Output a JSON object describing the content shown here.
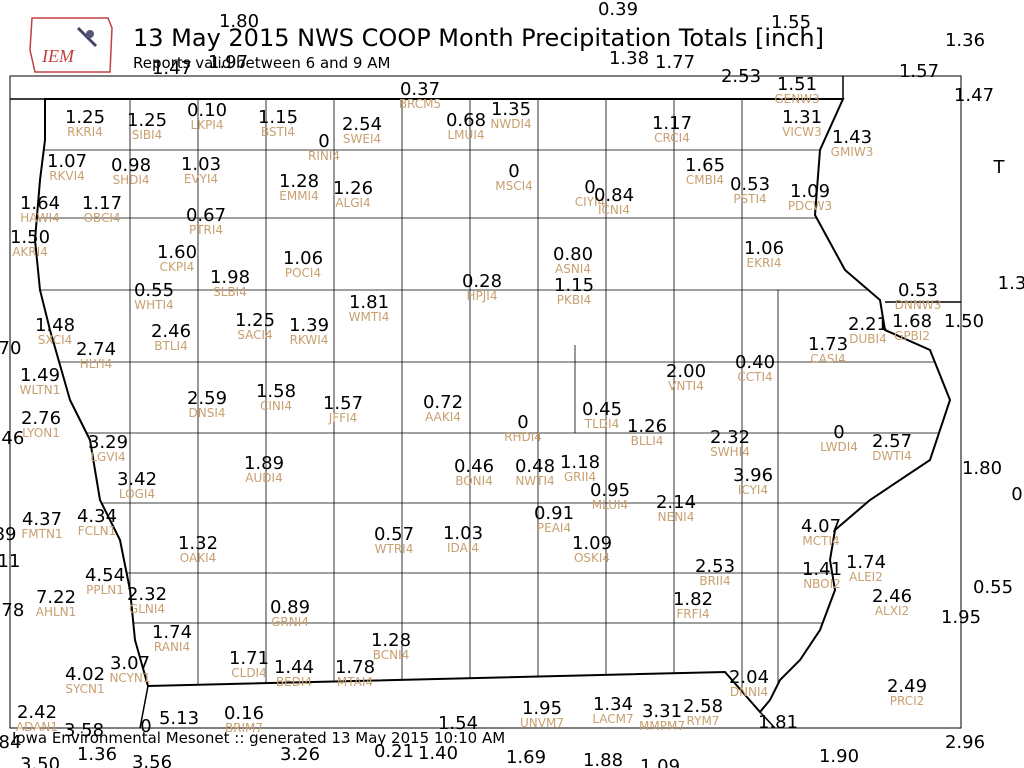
{
  "header": {
    "logo": "IEM",
    "title": "13 May 2015 NWS COOP Month Precipitation Totals [inch]",
    "subtitle": "Reports valid between 6 and 9 AM"
  },
  "stations": [
    {
      "value": "1.25",
      "id": "RKRI4"
    },
    {
      "value": "1.25",
      "id": "SIBI4"
    },
    {
      "value": "0.10",
      "id": "LKPI4"
    },
    {
      "value": "1.15",
      "id": "BSTI4"
    },
    {
      "value": "0",
      "id": "RINI4"
    },
    {
      "value": "2.54",
      "id": "SWEI4"
    },
    {
      "value": "0.37",
      "id": "BRCM5"
    },
    {
      "value": "0.68",
      "id": "LMUI4"
    },
    {
      "value": "1.35",
      "id": "NWDI4"
    },
    {
      "value": "1.17",
      "id": "CRCI4"
    },
    {
      "value": "1.51",
      "id": "GENW3"
    },
    {
      "value": "1.31",
      "id": "VICW3"
    },
    {
      "value": "1.43",
      "id": "GMIW3"
    },
    {
      "value": "1.07",
      "id": "RKVI4"
    },
    {
      "value": "0.98",
      "id": "SHDI4"
    },
    {
      "value": "1.03",
      "id": "EVYI4"
    },
    {
      "value": "1.28",
      "id": "EMMI4"
    },
    {
      "value": "1.26",
      "id": "ALGI4"
    },
    {
      "value": "0",
      "id": "MSCI4"
    },
    {
      "value": "0",
      "id": "CIYI4"
    },
    {
      "value": "0.84",
      "id": "ICNI4"
    },
    {
      "value": "1.65",
      "id": "CMBI4"
    },
    {
      "value": "0.53",
      "id": "PSTI4"
    },
    {
      "value": "1.09",
      "id": "PDCW3"
    },
    {
      "value": "1.64",
      "id": "HAWI4"
    },
    {
      "value": "1.17",
      "id": "OBCI4"
    },
    {
      "value": "0.67",
      "id": "PTRI4"
    },
    {
      "value": "1.50",
      "id": "AKRI4"
    },
    {
      "value": "1.60",
      "id": "CKPI4"
    },
    {
      "value": "1.06",
      "id": "POCI4"
    },
    {
      "value": "0.80",
      "id": "ASNI4"
    },
    {
      "value": "1.06",
      "id": "EKRI4"
    },
    {
      "value": "1.98",
      "id": "SLBI4"
    },
    {
      "value": "0.28",
      "id": "HPJI4"
    },
    {
      "value": "1.15",
      "id": "PKBI4"
    },
    {
      "value": "0.55",
      "id": "WHTI4"
    },
    {
      "value": "1.81",
      "id": "WMTI4"
    },
    {
      "value": "0.53",
      "id": "DNNW3"
    },
    {
      "value": "1.25",
      "id": "SACI4"
    },
    {
      "value": "1.39",
      "id": "RKWI4"
    },
    {
      "value": "2.46",
      "id": "BTLI4"
    },
    {
      "value": "1.48",
      "id": "SXCI4"
    },
    {
      "value": "2.21",
      "id": "DUBI4"
    },
    {
      "value": "1.68",
      "id": "GPBI2"
    },
    {
      "value": "1.73",
      "id": "CASI4"
    },
    {
      "value": "2.74",
      "id": "HLYI4"
    },
    {
      "value": "1.49",
      "id": "WLTN1"
    },
    {
      "value": "2.00",
      "id": "VNTI4"
    },
    {
      "value": "0.40",
      "id": "CCTI4"
    },
    {
      "value": "2.59",
      "id": "DNSI4"
    },
    {
      "value": "1.58",
      "id": "CINI4"
    },
    {
      "value": "1.57",
      "id": "JFFI4"
    },
    {
      "value": "0.72",
      "id": "AAKI4"
    },
    {
      "value": "2.76",
      "id": "LYON1"
    },
    {
      "value": "0",
      "id": "RHDI4"
    },
    {
      "value": "0.45",
      "id": "TLDI4"
    },
    {
      "value": "1.26",
      "id": "BLLI4"
    },
    {
      "value": "2.32",
      "id": "SWHI4"
    },
    {
      "value": "0",
      "id": "LWDI4"
    },
    {
      "value": "2.57",
      "id": "DWTI4"
    },
    {
      "value": "3.29",
      "id": "LGVI4"
    },
    {
      "value": "1.89",
      "id": "AUDI4"
    },
    {
      "value": "0.46",
      "id": "BONI4"
    },
    {
      "value": "0.48",
      "id": "NWTI4"
    },
    {
      "value": "1.18",
      "id": "GRII4"
    },
    {
      "value": "3.42",
      "id": "LOGI4"
    },
    {
      "value": "3.96",
      "id": "ICYI4"
    },
    {
      "value": "0.95",
      "id": "MLUI4"
    },
    {
      "value": "2.14",
      "id": "NENI4"
    },
    {
      "value": "4.37",
      "id": "FMTN1"
    },
    {
      "value": "4.34",
      "id": "FCLN1"
    },
    {
      "value": "0.91",
      "id": "PEAI4"
    },
    {
      "value": "4.07",
      "id": "MCTI4"
    },
    {
      "value": "1.32",
      "id": "OAKI4"
    },
    {
      "value": "0.57",
      "id": "WTRI4"
    },
    {
      "value": "1.03",
      "id": "IDAI4"
    },
    {
      "value": "1.09",
      "id": "OSKI4"
    },
    {
      "value": "2.53",
      "id": "BRII4"
    },
    {
      "value": "1.74",
      "id": "ALEI2"
    },
    {
      "value": "1.41",
      "id": "NBOI2"
    },
    {
      "value": "4.54",
      "id": "PPLN1"
    },
    {
      "value": "2.32",
      "id": "GLNI4"
    },
    {
      "value": "1.82",
      "id": "FRFI4"
    },
    {
      "value": "2.46",
      "id": "ALXI2"
    },
    {
      "value": "7.22",
      "id": "AHLN1"
    },
    {
      "value": "0.89",
      "id": "GRNI4"
    },
    {
      "value": "1.74",
      "id": "RANI4"
    },
    {
      "value": "1.28",
      "id": "BCNI4"
    },
    {
      "value": "1.71",
      "id": "CLDI4"
    },
    {
      "value": "1.44",
      "id": "BEDI4"
    },
    {
      "value": "1.78",
      "id": "MTAI4"
    },
    {
      "value": "3.07",
      "id": "NCYN1"
    },
    {
      "value": "4.02",
      "id": "SYCN1"
    },
    {
      "value": "2.04",
      "id": "DNNI4"
    },
    {
      "value": "2.49",
      "id": "PRCI2"
    },
    {
      "value": "2.42",
      "id": "ADAN1"
    },
    {
      "value": "0.16",
      "id": "BRIM7"
    },
    {
      "value": "1.95",
      "id": "UNVM7"
    },
    {
      "value": "1.34",
      "id": "LACM7"
    },
    {
      "value": "3.31",
      "id": "MMPM7"
    },
    {
      "value": "2.58",
      "id": "RYM7"
    }
  ],
  "unlabeled_values": [
    "1.80",
    "0.39",
    "1.55",
    "1.36",
    "1.97",
    "1.47",
    "1.38",
    "1.77",
    "2.53",
    "1.57",
    "1.47",
    "T",
    "1.3",
    "1.50",
    "70",
    ".46",
    "1.80",
    "0",
    "89",
    "11",
    "0.55",
    ".78",
    "1.95",
    "5.13",
    "0",
    "1.54",
    "1.81",
    "84",
    "1.36",
    "3.26",
    "0.21",
    "1.40",
    "1.69",
    "1.88",
    "1.09",
    "1.90",
    "2.96",
    "3.50",
    "3.56",
    "3.58"
  ],
  "footer": "Iowa Environmental Mesonet :: generated 13 May 2015 10:10 AM"
}
